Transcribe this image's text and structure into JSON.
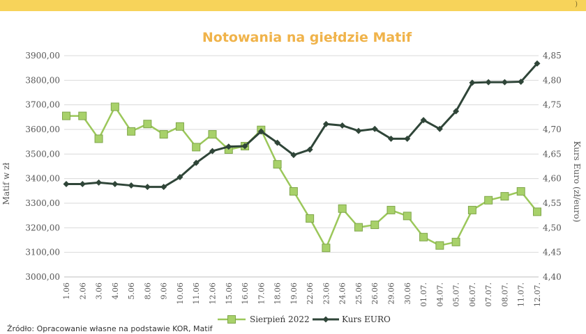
{
  "source_note": "Źródło: Opracowanie własne na podstawie KOR, Matif",
  "chart_data": {
    "type": "line",
    "title": "Notowania na giełdzie Matif",
    "ylabel": "Matif w zł",
    "y2label": "Kurs Euro (zł/euro)",
    "categories": [
      "1.06",
      "2.06",
      "3.06",
      "4.06",
      "5.06",
      "8.06",
      "9.06",
      "10.06",
      "11.06",
      "12.06",
      "15.06",
      "16.06",
      "17.06",
      "18.06",
      "19.06",
      "22.06",
      "23.06",
      "24.06",
      "25.06",
      "26.06",
      "29.06",
      "30.06",
      "01.07.",
      "04.07.",
      "05.07.",
      "06.07.",
      "07.07.",
      "08.07.",
      "11.07.",
      "12.07."
    ],
    "ylim": [
      3000,
      3900
    ],
    "yticks": [
      "3000,00",
      "3100,00",
      "3200,00",
      "3300,00",
      "3400,00",
      "3500,00",
      "3600,00",
      "3700,00",
      "3800,00",
      "3900,00"
    ],
    "y2lim": [
      4.4,
      4.85
    ],
    "y2ticks": [
      "4,40",
      "4,45",
      "4,50",
      "4,55",
      "4,60",
      "4,65",
      "4,70",
      "4,75",
      "4,80",
      "4,85"
    ],
    "grid": true,
    "legend_position": "bottom",
    "series": [
      {
        "name": "Sierpień 2022",
        "axis": "left",
        "color": "#9bc75a",
        "marker": "square",
        "values": [
          3655,
          3655,
          3562,
          3692,
          3592,
          3622,
          3580,
          3612,
          3528,
          3580,
          3518,
          3532,
          3598,
          3458,
          3348,
          3238,
          3118,
          3278,
          3202,
          3212,
          3272,
          3248,
          3162,
          3128,
          3142,
          3272,
          3312,
          3328,
          3348,
          3265
        ]
      },
      {
        "name": "Kurs EURO",
        "axis": "right",
        "color": "#2f4538",
        "marker": "diamond",
        "values": [
          4.589,
          4.589,
          4.592,
          4.589,
          4.586,
          4.583,
          4.583,
          4.603,
          4.632,
          4.656,
          4.665,
          4.666,
          4.696,
          4.673,
          4.648,
          4.659,
          4.711,
          4.708,
          4.697,
          4.701,
          4.681,
          4.681,
          4.719,
          4.701,
          4.737,
          4.795,
          4.796,
          4.796,
          4.797,
          4.834
        ]
      }
    ]
  }
}
